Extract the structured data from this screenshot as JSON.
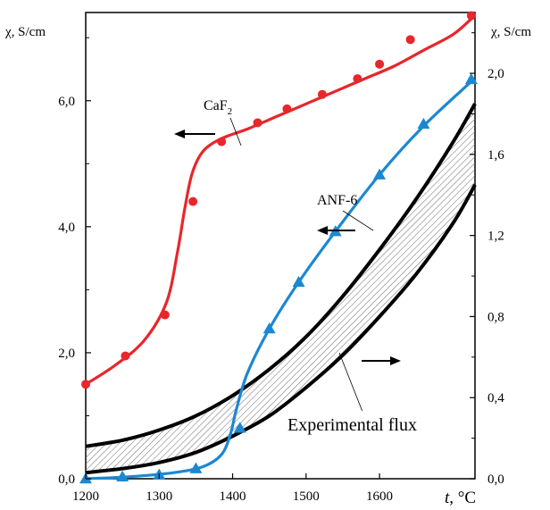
{
  "chart_data": {
    "type": "line",
    "x_axis": {
      "label_italic": "t",
      "label_unit": ", °C",
      "range": [
        1200,
        1730
      ],
      "ticks": [
        1200,
        1300,
        1400,
        1500,
        1600
      ],
      "tick_labels": [
        "1200",
        "1300",
        "1400",
        "1500",
        "1600"
      ]
    },
    "y_left": {
      "label": "χ, S/cm",
      "range": [
        0,
        7.4
      ],
      "ticks": [
        0,
        2,
        4,
        6
      ],
      "tick_labels": [
        "0,0",
        "2,0",
        "4,0",
        "6,0"
      ]
    },
    "y_right": {
      "label": "χ, S/cm",
      "range": [
        0,
        2.3
      ],
      "ticks": [
        0,
        0.4,
        0.8,
        1.2,
        1.6,
        2.0
      ],
      "tick_labels": [
        "0,0",
        "0,4",
        "0,8",
        "1,2",
        "1,6",
        "2,0"
      ]
    },
    "grid": false,
    "series": [
      {
        "name_base": "CaF",
        "name_sub": "2",
        "axis": "left",
        "color": "#e8262b",
        "marker": "circle",
        "points": [
          [
            1200,
            1.5
          ],
          [
            1254,
            1.95
          ],
          [
            1308,
            2.6
          ],
          [
            1346,
            4.4
          ],
          [
            1385,
            5.35
          ],
          [
            1434,
            5.65
          ],
          [
            1474,
            5.87
          ],
          [
            1522,
            6.1
          ],
          [
            1570,
            6.35
          ],
          [
            1600,
            6.58
          ],
          [
            1642,
            6.97
          ],
          [
            1725,
            7.35
          ]
        ],
        "curve": [
          [
            1200,
            1.5
          ],
          [
            1240,
            1.8
          ],
          [
            1280,
            2.2
          ],
          [
            1310,
            2.8
          ],
          [
            1325,
            3.6
          ],
          [
            1335,
            4.3
          ],
          [
            1345,
            4.85
          ],
          [
            1360,
            5.2
          ],
          [
            1385,
            5.4
          ],
          [
            1420,
            5.55
          ],
          [
            1460,
            5.75
          ],
          [
            1500,
            5.95
          ],
          [
            1540,
            6.15
          ],
          [
            1580,
            6.35
          ],
          [
            1620,
            6.55
          ],
          [
            1660,
            6.8
          ],
          [
            1700,
            7.05
          ],
          [
            1725,
            7.3
          ]
        ]
      },
      {
        "name": "ANF-6",
        "axis": "right",
        "color": "#1b88d2",
        "marker": "triangle",
        "points": [
          [
            1200,
            0.0
          ],
          [
            1250,
            0.01
          ],
          [
            1300,
            0.02
          ],
          [
            1350,
            0.05
          ],
          [
            1410,
            0.25
          ],
          [
            1450,
            0.74
          ],
          [
            1490,
            0.97
          ],
          [
            1540,
            1.22
          ],
          [
            1600,
            1.5
          ],
          [
            1660,
            1.75
          ],
          [
            1725,
            1.97
          ]
        ],
        "curve": [
          [
            1200,
            0.0
          ],
          [
            1260,
            0.01
          ],
          [
            1320,
            0.03
          ],
          [
            1360,
            0.06
          ],
          [
            1385,
            0.12
          ],
          [
            1397,
            0.22
          ],
          [
            1405,
            0.34
          ],
          [
            1420,
            0.52
          ],
          [
            1450,
            0.74
          ],
          [
            1490,
            0.97
          ],
          [
            1540,
            1.22
          ],
          [
            1600,
            1.5
          ],
          [
            1660,
            1.74
          ],
          [
            1725,
            1.96
          ]
        ]
      },
      {
        "name": "Experimental flux",
        "axis": "right",
        "color": "#000000",
        "marker": "none",
        "upper": [
          [
            1200,
            0.16
          ],
          [
            1250,
            0.19
          ],
          [
            1300,
            0.24
          ],
          [
            1350,
            0.31
          ],
          [
            1400,
            0.41
          ],
          [
            1450,
            0.54
          ],
          [
            1500,
            0.7
          ],
          [
            1550,
            0.9
          ],
          [
            1600,
            1.13
          ],
          [
            1650,
            1.38
          ],
          [
            1700,
            1.66
          ],
          [
            1730,
            1.85
          ]
        ],
        "lower": [
          [
            1200,
            0.03
          ],
          [
            1250,
            0.05
          ],
          [
            1300,
            0.08
          ],
          [
            1350,
            0.13
          ],
          [
            1400,
            0.21
          ],
          [
            1450,
            0.31
          ],
          [
            1500,
            0.45
          ],
          [
            1550,
            0.61
          ],
          [
            1600,
            0.8
          ],
          [
            1650,
            1.01
          ],
          [
            1700,
            1.26
          ],
          [
            1730,
            1.45
          ]
        ]
      }
    ],
    "annotations": [
      {
        "text": "ANF-6"
      },
      {
        "text": "Experimental flux"
      }
    ]
  }
}
